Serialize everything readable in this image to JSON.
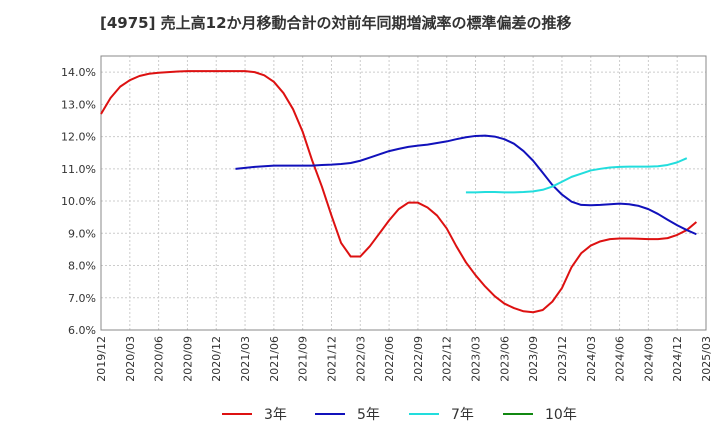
{
  "chart_data": {
    "type": "line",
    "title": "[4975]  売上高12か月移動合計の対前年同期増減率の標準偏差の推移",
    "xlabel": "",
    "ylabel": "",
    "ylim": [
      6.0,
      14.5
    ],
    "y_ticks": [
      "6.0%",
      "7.0%",
      "8.0%",
      "9.0%",
      "10.0%",
      "11.0%",
      "12.0%",
      "13.0%",
      "14.0%"
    ],
    "x_ticks": [
      "2019/12",
      "2020/03",
      "2020/06",
      "2020/09",
      "2020/12",
      "2021/03",
      "2021/06",
      "2021/09",
      "2021/12",
      "2022/03",
      "2022/06",
      "2022/09",
      "2022/12",
      "2023/03",
      "2023/06",
      "2023/09",
      "2023/12",
      "2024/03",
      "2024/06",
      "2024/09",
      "2024/12",
      "2025/03"
    ],
    "x_start": "2019/12",
    "grid": true,
    "legend_position": "bottom",
    "series": [
      {
        "name": "3年",
        "color": "#dd1111",
        "start": "2019/12",
        "values": [
          12.7,
          13.2,
          13.55,
          13.75,
          13.88,
          13.95,
          13.98,
          14.0,
          14.02,
          14.03,
          14.03,
          14.03,
          14.03,
          14.03,
          14.03,
          14.03,
          14.0,
          13.9,
          13.7,
          13.35,
          12.85,
          12.15,
          11.25,
          10.45,
          9.55,
          8.7,
          8.28,
          8.28,
          8.6,
          9.0,
          9.4,
          9.75,
          9.95,
          9.95,
          9.8,
          9.55,
          9.15,
          8.6,
          8.1,
          7.7,
          7.35,
          7.05,
          6.82,
          6.68,
          6.58,
          6.55,
          6.62,
          6.88,
          7.3,
          7.95,
          8.38,
          8.62,
          8.75,
          8.82,
          8.84,
          8.84,
          8.83,
          8.82,
          8.82,
          8.85,
          8.95,
          9.1,
          9.35
        ]
      },
      {
        "name": "5年",
        "color": "#1111bb",
        "start": "2021/02",
        "values": [
          11.0,
          11.03,
          11.06,
          11.08,
          11.1,
          11.1,
          11.1,
          11.1,
          11.1,
          11.12,
          11.13,
          11.15,
          11.18,
          11.25,
          11.35,
          11.45,
          11.55,
          11.62,
          11.68,
          11.72,
          11.75,
          11.8,
          11.85,
          11.92,
          11.98,
          12.02,
          12.03,
          12.0,
          11.92,
          11.78,
          11.55,
          11.25,
          10.88,
          10.5,
          10.2,
          9.98,
          9.88,
          9.87,
          9.88,
          9.9,
          9.92,
          9.9,
          9.85,
          9.75,
          9.6,
          9.42,
          9.25,
          9.1,
          8.97
        ]
      },
      {
        "name": "7年",
        "color": "#22dddd",
        "start": "2023/02",
        "values": [
          10.27,
          10.27,
          10.28,
          10.28,
          10.27,
          10.27,
          10.28,
          10.3,
          10.35,
          10.45,
          10.6,
          10.75,
          10.85,
          10.95,
          11.0,
          11.04,
          11.06,
          11.07,
          11.07,
          11.07,
          11.08,
          11.12,
          11.2,
          11.33
        ]
      },
      {
        "name": "10年",
        "color": "#118811",
        "start": "2025/03",
        "values": []
      }
    ]
  }
}
